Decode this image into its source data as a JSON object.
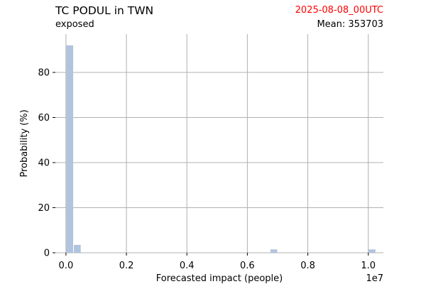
{
  "header": {
    "title": "TC PODUL in TWN",
    "subtitle": "exposed",
    "date": "2025-08-08_00UTC",
    "mean": "Mean: 353703"
  },
  "colors": {
    "bar": "#b0c4de",
    "grid": "#b0b0b0",
    "date_text": "#ff0000",
    "text": "#000000"
  },
  "chart_data": {
    "type": "bar",
    "title": "TC PODUL in TWN",
    "subtitle": "exposed",
    "xlabel": "Forecasted impact (people)",
    "ylabel": "Probability (%)",
    "x_scale_label": "1e7",
    "x_unit_multiplier": 10000000,
    "xlim": [
      -0.035,
      1.05
    ],
    "ylim": [
      0,
      97
    ],
    "xticks": [
      0.0,
      0.2,
      0.4,
      0.6,
      0.8,
      1.0
    ],
    "xtick_labels": [
      "0.0",
      "0.2",
      "0.4",
      "0.6",
      "0.8",
      "1.0"
    ],
    "yticks": [
      0,
      20,
      40,
      60,
      80
    ],
    "ytick_labels": [
      "0",
      "20",
      "40",
      "60",
      "80"
    ],
    "grid": true,
    "bins": [
      {
        "x0": 0.0,
        "x1": 0.025,
        "value": 92
      },
      {
        "x0": 0.025,
        "x1": 0.05,
        "value": 3.5
      },
      {
        "x0": 0.675,
        "x1": 0.7,
        "value": 1.5
      },
      {
        "x0": 1.0,
        "x1": 1.025,
        "value": 1.5
      }
    ]
  }
}
